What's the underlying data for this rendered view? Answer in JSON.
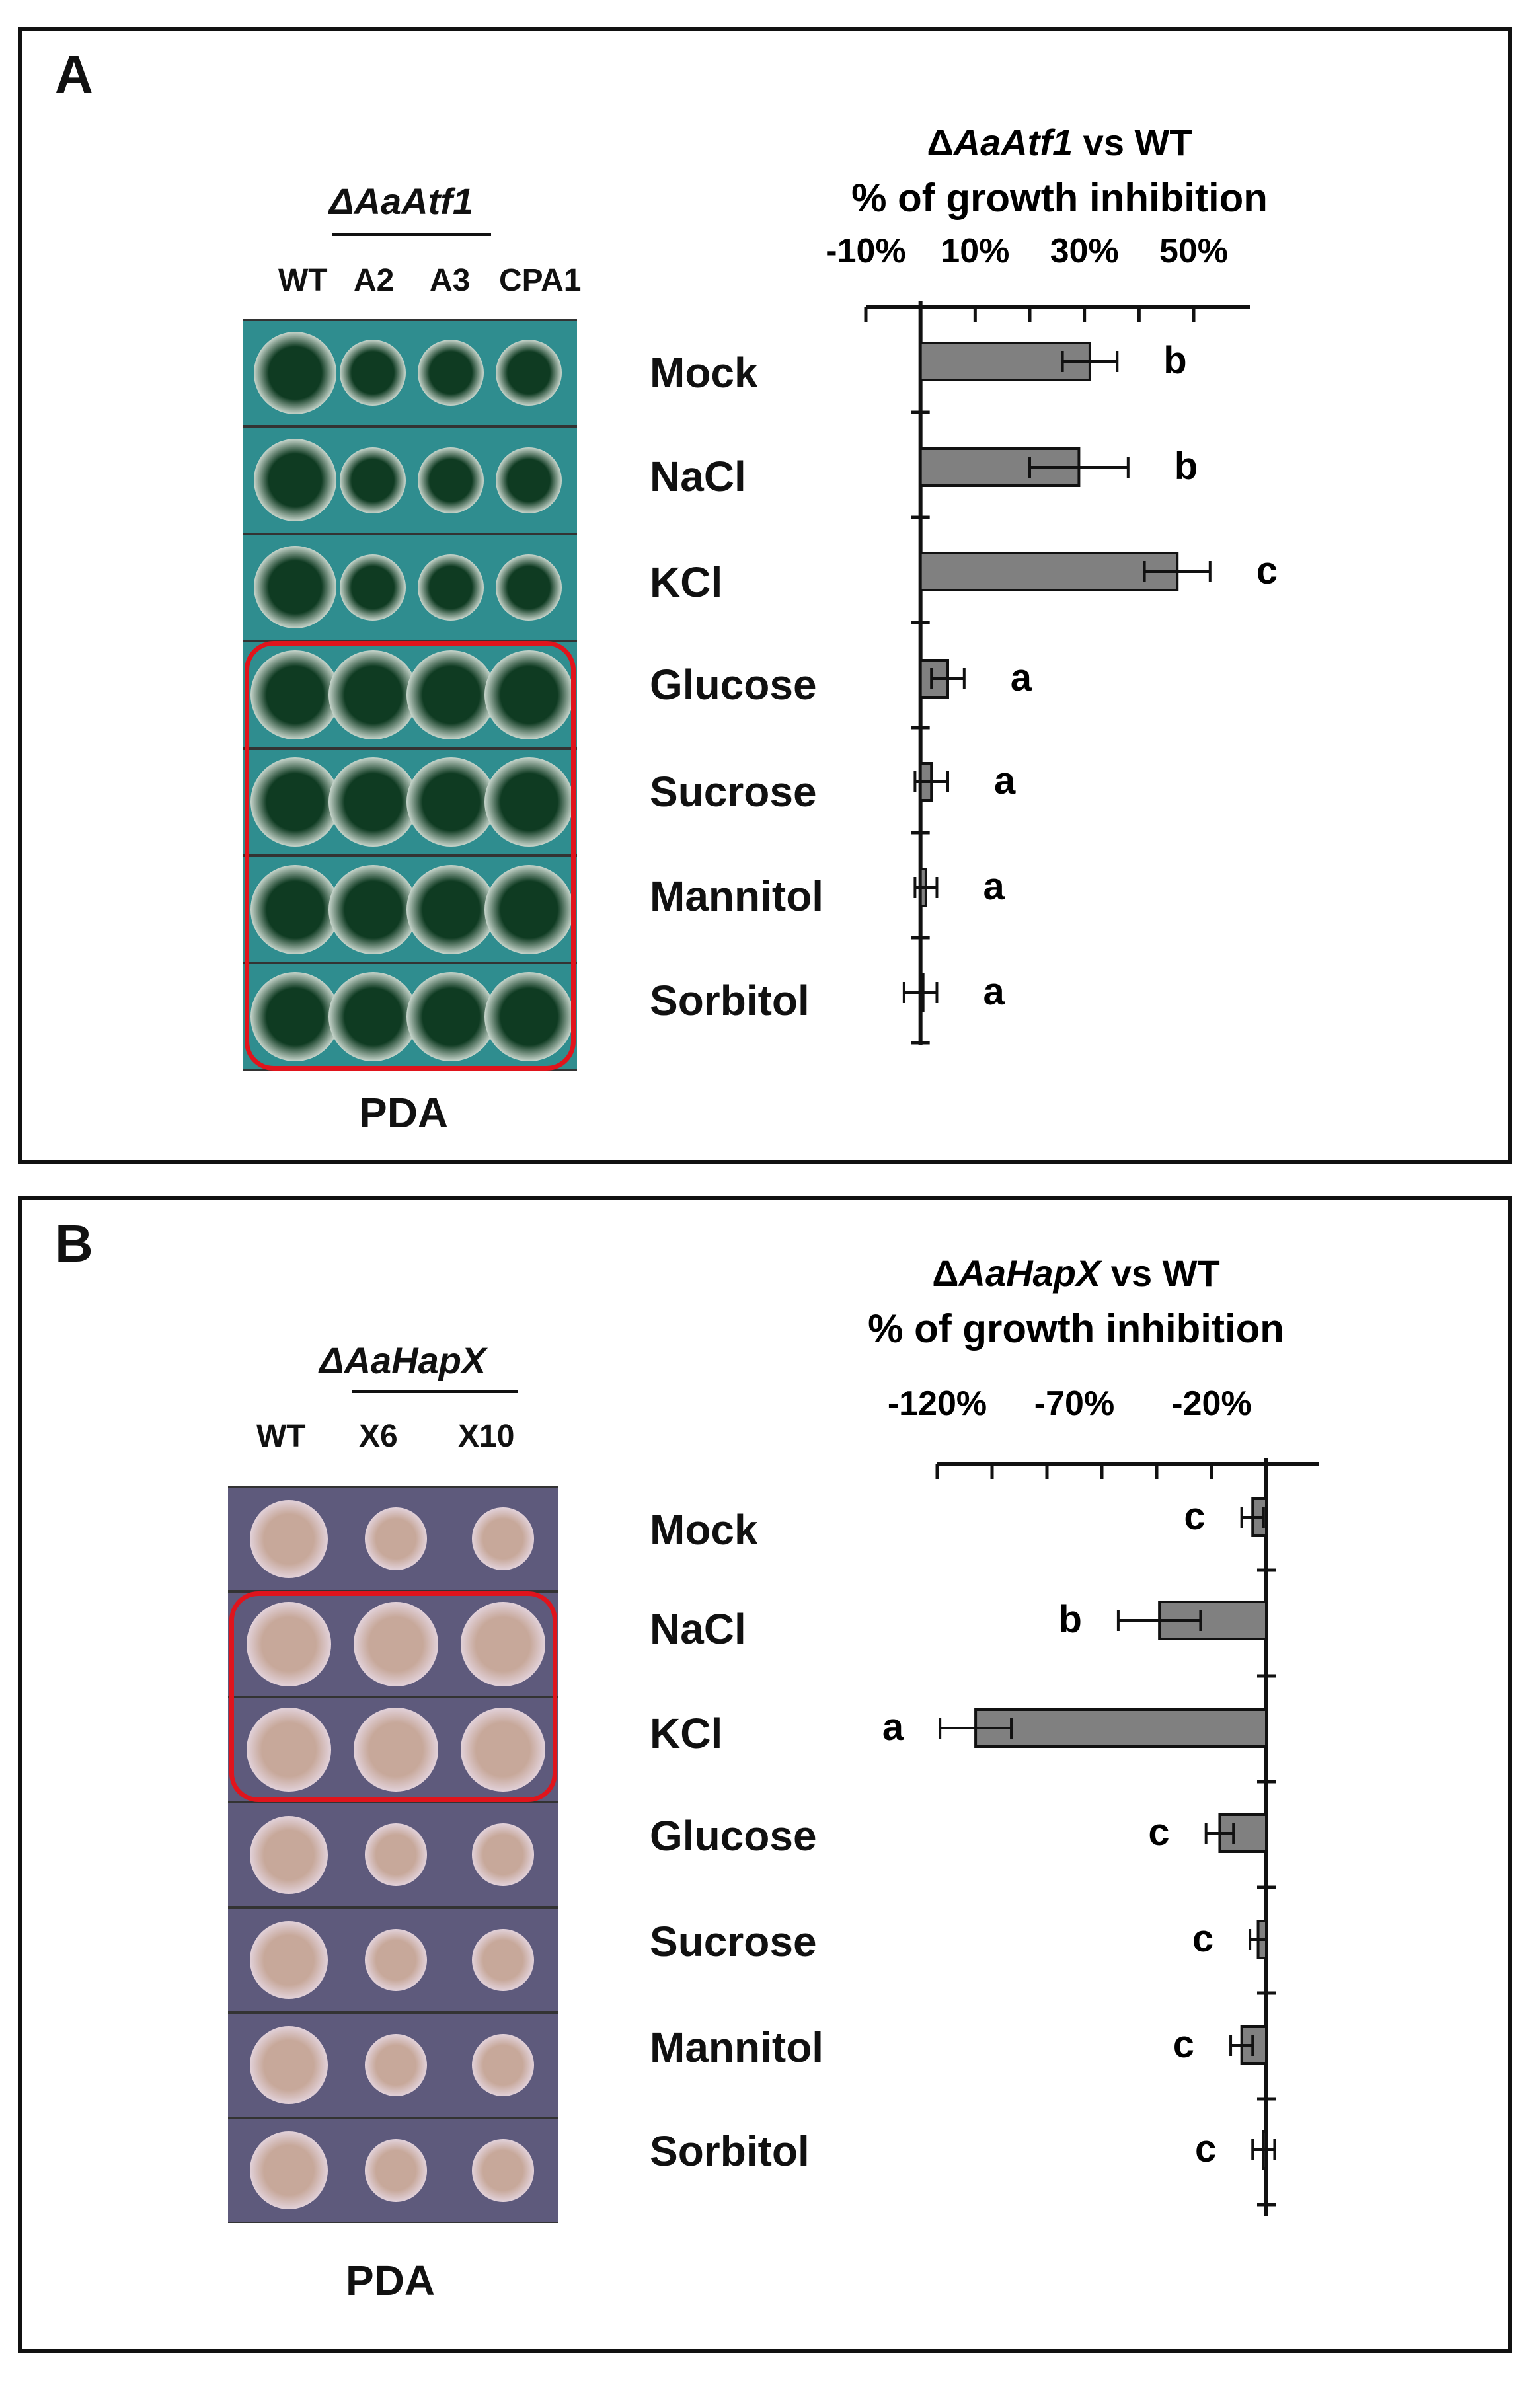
{
  "panelA": {
    "panel_label": "A",
    "strain_header": "ΔAaAtf1",
    "lanes": [
      "WT",
      "A2",
      "A3",
      "CPA1"
    ],
    "medium_label": "PDA",
    "plate_colors": {
      "background": "#2f8d8f",
      "colony": "#0f3b22",
      "halo": "#e6efe8"
    },
    "highlighted_rows": [
      "Glucose",
      "Sucrose",
      "Mannitol",
      "Sorbitol"
    ]
  },
  "panelB": {
    "panel_label": "B",
    "strain_header": "ΔAaHapX",
    "lanes": [
      "WT",
      "X6",
      "X10"
    ],
    "medium_label": "PDA",
    "plate_colors": {
      "background": "#5e5a7c",
      "colony": "#c7a89a",
      "halo": "#e6d8e4"
    },
    "highlighted_rows": [
      "NaCl",
      "KCl"
    ]
  },
  "chart_data": [
    {
      "type": "bar",
      "orientation": "horizontal",
      "title_prefix": "Δ",
      "title_italic": "AaAtf1",
      "title_suffix": " vs WT",
      "subtitle": "% of growth inhibition",
      "xlabel": "",
      "ylabel": "",
      "xlim": [
        -10,
        50
      ],
      "xticks": [
        "-10%",
        "10%",
        "30%",
        "50%"
      ],
      "categories": [
        "Mock",
        "NaCl",
        "KCl",
        "Glucose",
        "Sucrose",
        "Mannitol",
        "Sorbitol"
      ],
      "values": [
        31,
        29,
        47,
        5,
        2,
        1,
        0
      ],
      "errors": [
        5,
        9,
        6,
        3,
        3,
        2,
        3
      ],
      "significance": [
        "b",
        "b",
        "c",
        "a",
        "a",
        "a",
        "a"
      ],
      "bar_color": "#808080"
    },
    {
      "type": "bar",
      "orientation": "horizontal",
      "title_prefix": "Δ",
      "title_italic": "AaHapX",
      "title_suffix": " vs WT",
      "subtitle": "% of growth inhibition",
      "xlabel": "",
      "ylabel": "",
      "xlim": [
        -120,
        0
      ],
      "xticks": [
        "-120%",
        "-70%",
        "-20%"
      ],
      "categories": [
        "Mock",
        "NaCl",
        "KCl",
        "Glucose",
        "Sucrose",
        "Mannitol",
        "Sorbitol"
      ],
      "values": [
        -5,
        -39,
        -106,
        -17,
        -3,
        -9,
        -1
      ],
      "errors": [
        4,
        15,
        13,
        5,
        3,
        4,
        4
      ],
      "significance": [
        "c",
        "b",
        "a",
        "c",
        "c",
        "c",
        "c"
      ],
      "bar_color": "#808080"
    }
  ]
}
